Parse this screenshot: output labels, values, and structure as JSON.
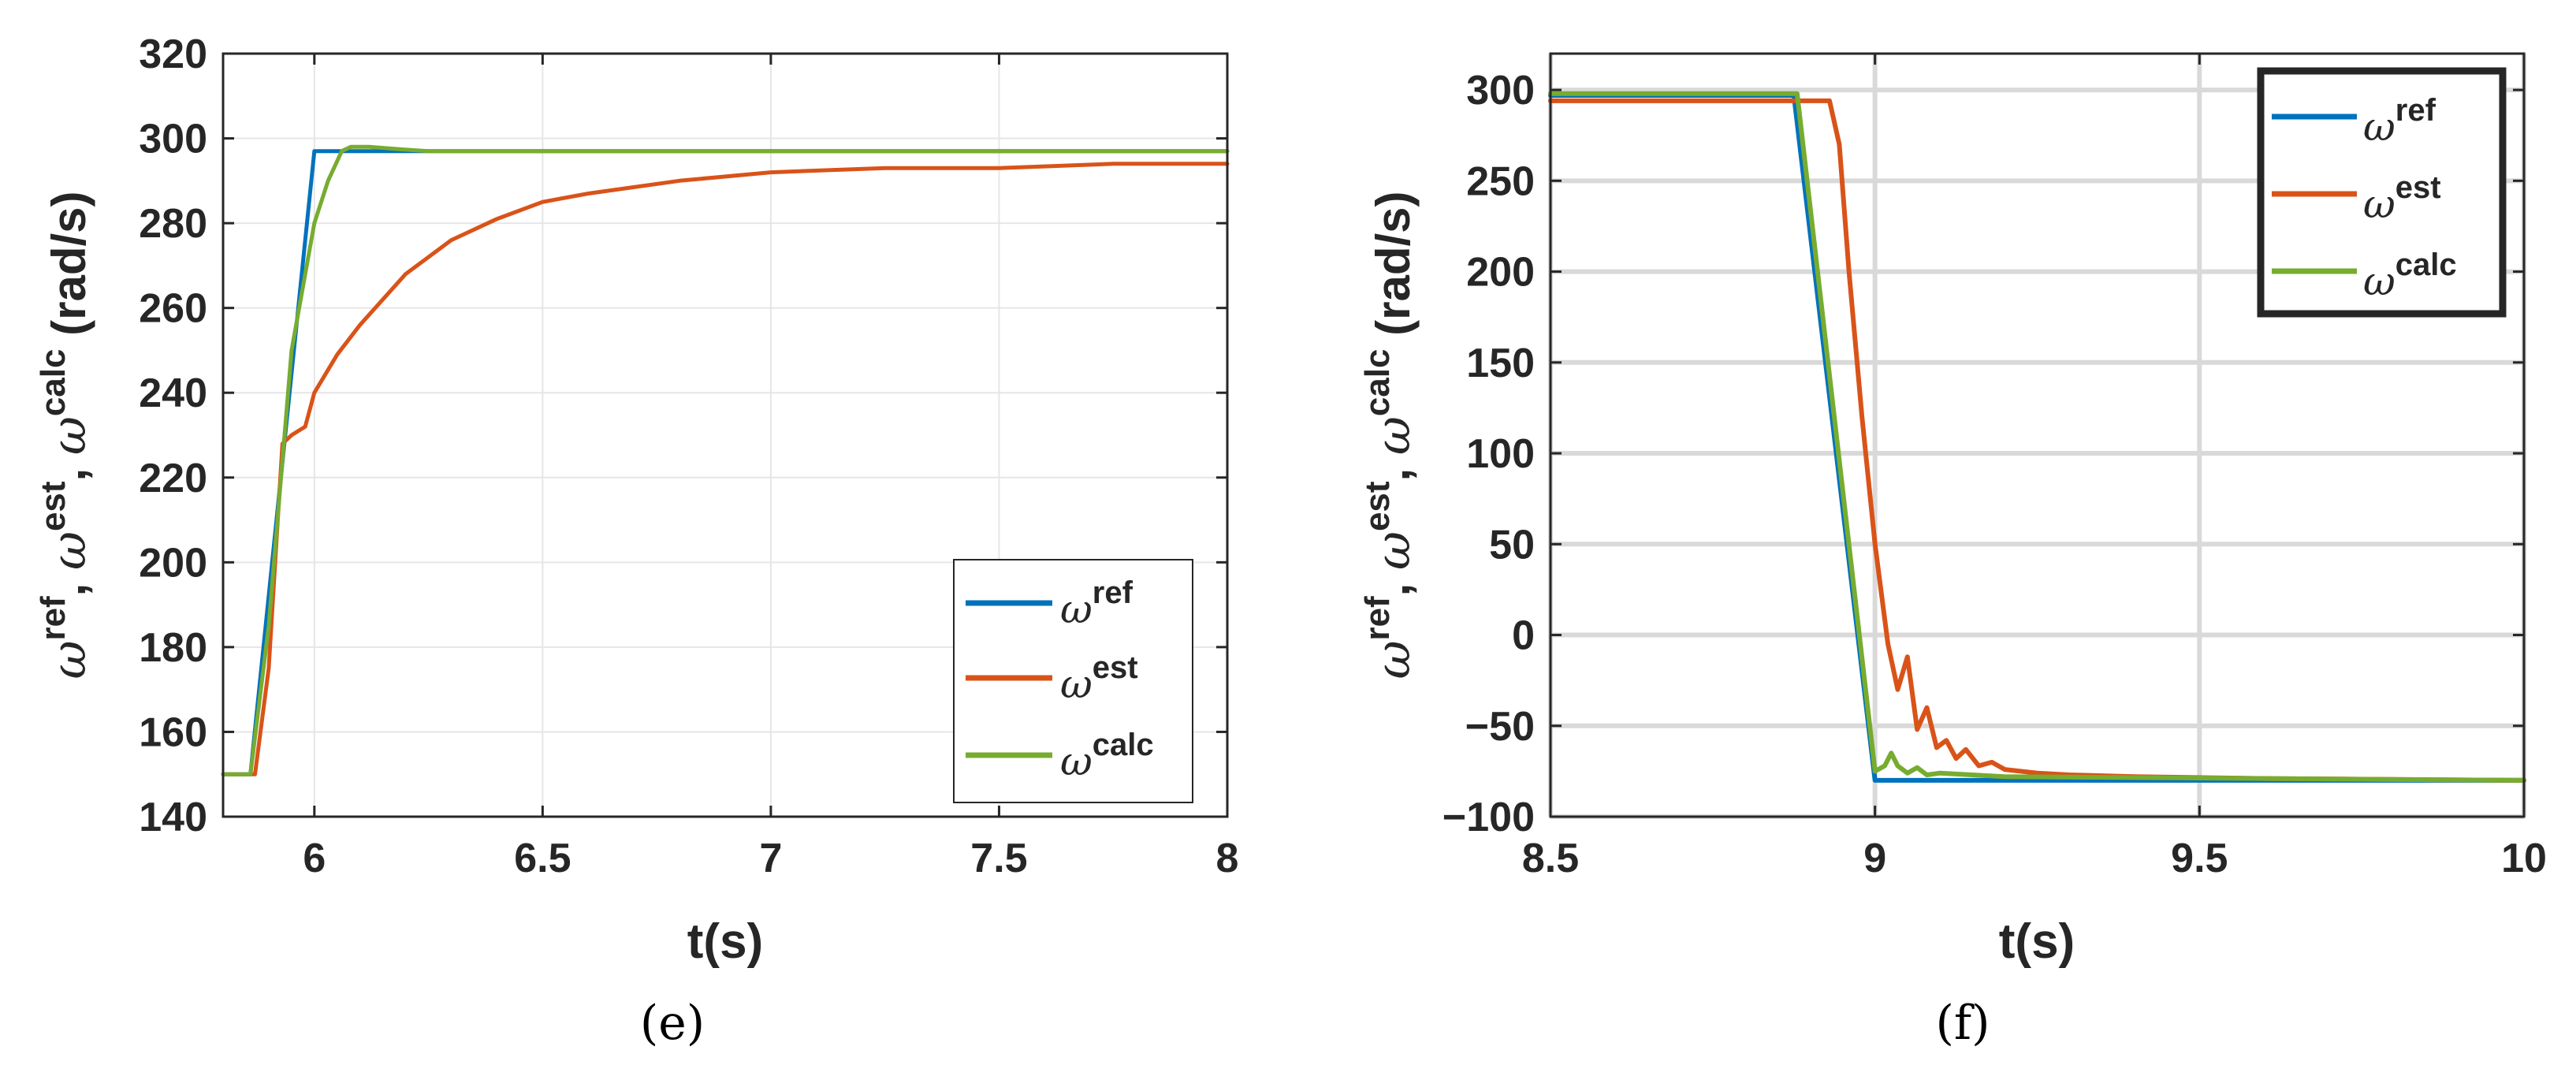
{
  "colors": {
    "ref": "#0072BD",
    "est": "#D95319",
    "calc": "#77AC30",
    "axis": "#262626",
    "grid_e": "#e6e6e6",
    "grid_f": "#d9d9d9"
  },
  "chart_data": [
    {
      "panel_label": "(e)",
      "type": "line",
      "xlabel": "t(s)",
      "ylabel_symbol": "ω",
      "ylabel_superscripts": [
        "ref",
        "est",
        "calc"
      ],
      "ylabel_unit": "(rad/s)",
      "xlim": [
        5.8,
        8
      ],
      "ylim": [
        140,
        320
      ],
      "xticks": [
        6,
        6.5,
        7,
        7.5,
        8
      ],
      "xtick_labels": [
        "6",
        "6.5",
        "7",
        "7.5",
        "8"
      ],
      "yticks": [
        140,
        160,
        180,
        200,
        220,
        240,
        260,
        280,
        300,
        320
      ],
      "ytick_labels": [
        "140",
        "160",
        "180",
        "200",
        "220",
        "240",
        "260",
        "280",
        "300",
        "320"
      ],
      "grid": true,
      "legend_position": "bottom-right",
      "series": [
        {
          "name": "ωref",
          "symbol": "ω",
          "sup": "ref",
          "color_key": "ref",
          "x": [
            5.8,
            5.86,
            6.0,
            8.0
          ],
          "y": [
            150,
            150,
            297,
            297
          ]
        },
        {
          "name": "ωest",
          "symbol": "ω",
          "sup": "est",
          "color_key": "est",
          "x": [
            5.8,
            5.87,
            5.9,
            5.93,
            5.95,
            5.98,
            6.0,
            6.05,
            6.1,
            6.2,
            6.3,
            6.4,
            6.5,
            6.6,
            6.8,
            7.0,
            7.25,
            7.5,
            7.75,
            8.0
          ],
          "y": [
            150,
            150,
            175,
            228,
            230,
            232,
            240,
            249,
            256,
            268,
            276,
            281,
            285,
            287,
            290,
            292,
            293,
            293,
            294,
            294
          ]
        },
        {
          "name": "ωcalc",
          "symbol": "ω",
          "sup": "calc",
          "color_key": "calc",
          "x": [
            5.8,
            5.86,
            5.9,
            5.95,
            6.0,
            6.03,
            6.06,
            6.08,
            6.12,
            6.18,
            6.25,
            6.5,
            7.0,
            8.0
          ],
          "y": [
            150,
            150,
            185,
            250,
            280,
            290,
            297,
            298,
            298,
            297.5,
            297,
            297,
            297,
            297
          ]
        }
      ]
    },
    {
      "panel_label": "(f)",
      "type": "line",
      "xlabel": "t(s)",
      "ylabel_symbol": "ω",
      "ylabel_superscripts": [
        "ref",
        "est",
        "calc"
      ],
      "ylabel_unit": "(rad/s)",
      "xlim": [
        8.5,
        10
      ],
      "ylim": [
        -100,
        320
      ],
      "xticks": [
        8.5,
        9,
        9.5,
        10
      ],
      "xtick_labels": [
        "8.5",
        "9",
        "9.5",
        "10"
      ],
      "yticks": [
        -100,
        -50,
        0,
        50,
        100,
        150,
        200,
        250,
        300
      ],
      "ytick_labels": [
        "−100",
        "−50",
        "0",
        "50",
        "100",
        "150",
        "200",
        "250",
        "300"
      ],
      "grid": true,
      "legend_position": "top-right",
      "series": [
        {
          "name": "ωref",
          "symbol": "ω",
          "sup": "ref",
          "color_key": "ref",
          "x": [
            8.5,
            8.875,
            9.0,
            10.0
          ],
          "y": [
            297,
            297,
            -80,
            -80
          ]
        },
        {
          "name": "ωest",
          "symbol": "ω",
          "sup": "est",
          "color_key": "est",
          "x": [
            8.5,
            8.8,
            8.93,
            8.945,
            8.96,
            8.98,
            9.0,
            9.02,
            9.035,
            9.05,
            9.065,
            9.08,
            9.095,
            9.11,
            9.125,
            9.14,
            9.16,
            9.18,
            9.2,
            9.25,
            9.3,
            9.4,
            9.6,
            10.0
          ],
          "y": [
            294,
            294,
            294,
            270,
            200,
            120,
            50,
            -5,
            -30,
            -12,
            -52,
            -40,
            -62,
            -58,
            -68,
            -63,
            -72,
            -70,
            -74,
            -76,
            -77,
            -78,
            -79,
            -80
          ]
        },
        {
          "name": "ωcalc",
          "symbol": "ω",
          "sup": "calc",
          "color_key": "calc",
          "x": [
            8.5,
            8.88,
            9.0,
            9.015,
            9.025,
            9.035,
            9.05,
            9.065,
            9.08,
            9.1,
            9.15,
            9.2,
            10.0
          ],
          "y": [
            298,
            298,
            -75,
            -72,
            -65,
            -72,
            -76,
            -73,
            -77,
            -76,
            -77,
            -78,
            -80
          ]
        }
      ]
    }
  ]
}
